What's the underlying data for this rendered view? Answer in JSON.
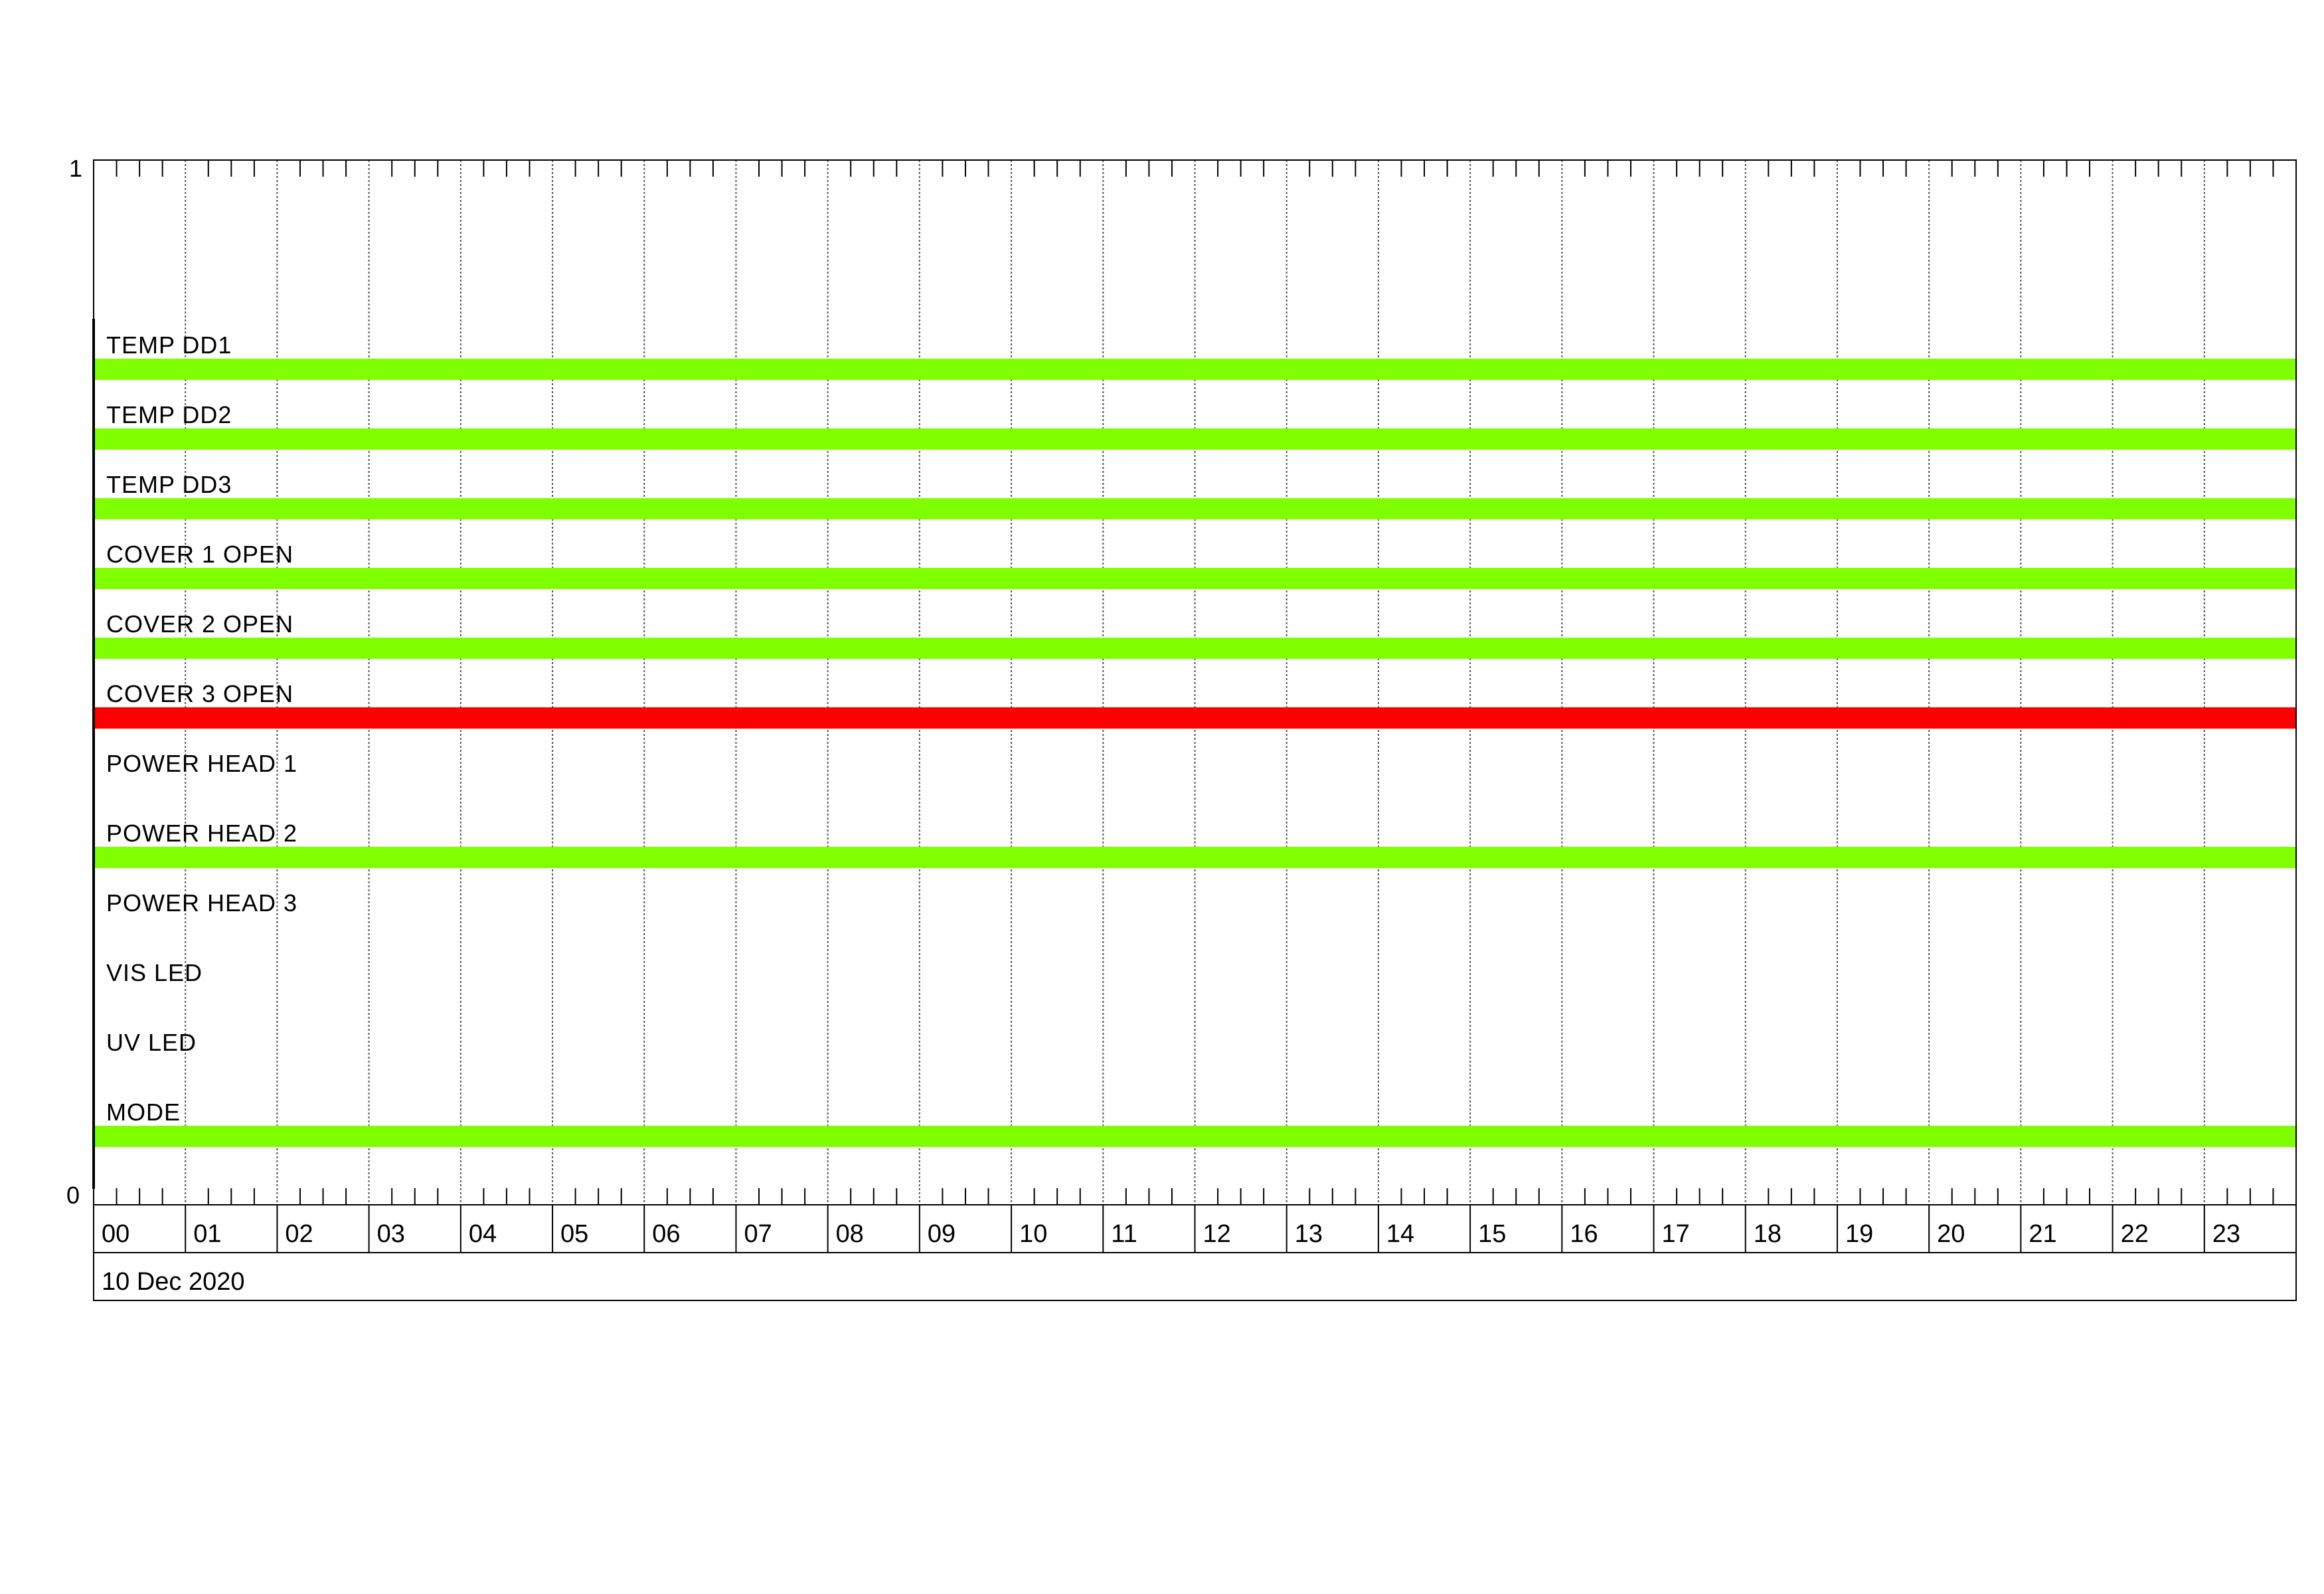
{
  "chart_data": {
    "type": "timeline",
    "title": "",
    "date_label": "10 Dec 2020",
    "y_axis_labels": [
      "1",
      "0"
    ],
    "x_ticks": [
      "00",
      "01",
      "02",
      "03",
      "04",
      "05",
      "06",
      "07",
      "08",
      "09",
      "10",
      "11",
      "12",
      "13",
      "14",
      "15",
      "16",
      "17",
      "18",
      "19",
      "20",
      "21",
      "22",
      "23"
    ],
    "x_range_hours": [
      0,
      24
    ],
    "minor_ticks_per_hour": 4,
    "grid": true,
    "colors": {
      "on": "#80ff00",
      "off": "#ff0000"
    },
    "series": [
      {
        "name": "TEMP DD1",
        "state": "on",
        "start_hour": 0,
        "end_hour": 24
      },
      {
        "name": "TEMP DD2",
        "state": "on",
        "start_hour": 0,
        "end_hour": 24
      },
      {
        "name": "TEMP DD3",
        "state": "on",
        "start_hour": 0,
        "end_hour": 24
      },
      {
        "name": "COVER 1 OPEN",
        "state": "on",
        "start_hour": 0,
        "end_hour": 24
      },
      {
        "name": "COVER 2 OPEN",
        "state": "on",
        "start_hour": 0,
        "end_hour": 24
      },
      {
        "name": "COVER 3 OPEN",
        "state": "off",
        "start_hour": 0,
        "end_hour": 24
      },
      {
        "name": "POWER HEAD 1",
        "state": null
      },
      {
        "name": "POWER HEAD 2",
        "state": "on",
        "start_hour": 0,
        "end_hour": 24
      },
      {
        "name": "POWER HEAD 3",
        "state": null
      },
      {
        "name": "VIS LED",
        "state": null
      },
      {
        "name": "UV LED",
        "state": null
      },
      {
        "name": "MODE",
        "state": "on",
        "start_hour": 0,
        "end_hour": 24
      }
    ]
  }
}
